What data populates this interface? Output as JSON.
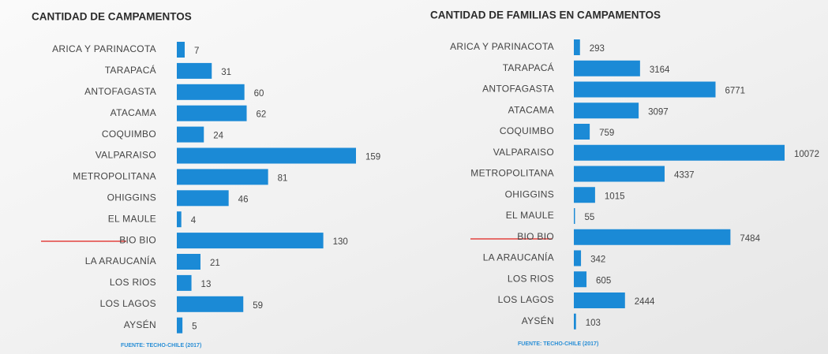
{
  "chart_data": [
    {
      "type": "bar",
      "orientation": "horizontal",
      "title": "CANTIDAD DE CAMPAMENTOS",
      "categories": [
        "ARICA Y PARINACOTA",
        "TARAPACÁ",
        "ANTOFAGASTA",
        "ATACAMA",
        "COQUIMBO",
        "VALPARAISO",
        "METROPOLITANA",
        "OHIGGINS",
        "EL MAULE",
        "BIO BIO",
        "LA ARAUCANÍA",
        "LOS RIOS",
        "LOS LAGOS",
        "AYSÉN"
      ],
      "values": [
        7,
        31,
        60,
        62,
        24,
        159,
        81,
        46,
        4,
        130,
        21,
        13,
        59,
        5
      ],
      "color": "#1b8ad6",
      "source": "FUENTE: TECHO-CHILE (2017)"
    },
    {
      "type": "bar",
      "orientation": "horizontal",
      "title": "CANTIDAD DE FAMILIAS EN CAMPAMENTOS",
      "categories": [
        "ARICA Y PARINACOTA",
        "TARAPACÁ",
        "ANTOFAGASTA",
        "ATACAMA",
        "COQUIMBO",
        "VALPARAISO",
        "METROPOLITANA",
        "OHIGGINS",
        "EL MAULE",
        "BIO BIO",
        "LA ARAUCANÍA",
        "LOS RIOS",
        "LOS LAGOS",
        "AYSÉN"
      ],
      "values": [
        293,
        3164,
        6771,
        3097,
        759,
        10072,
        4337,
        1015,
        55,
        7484,
        342,
        605,
        2444,
        103
      ],
      "color": "#1b8ad6",
      "source": "FUENTE: TECHO-CHILE (2017)"
    }
  ]
}
